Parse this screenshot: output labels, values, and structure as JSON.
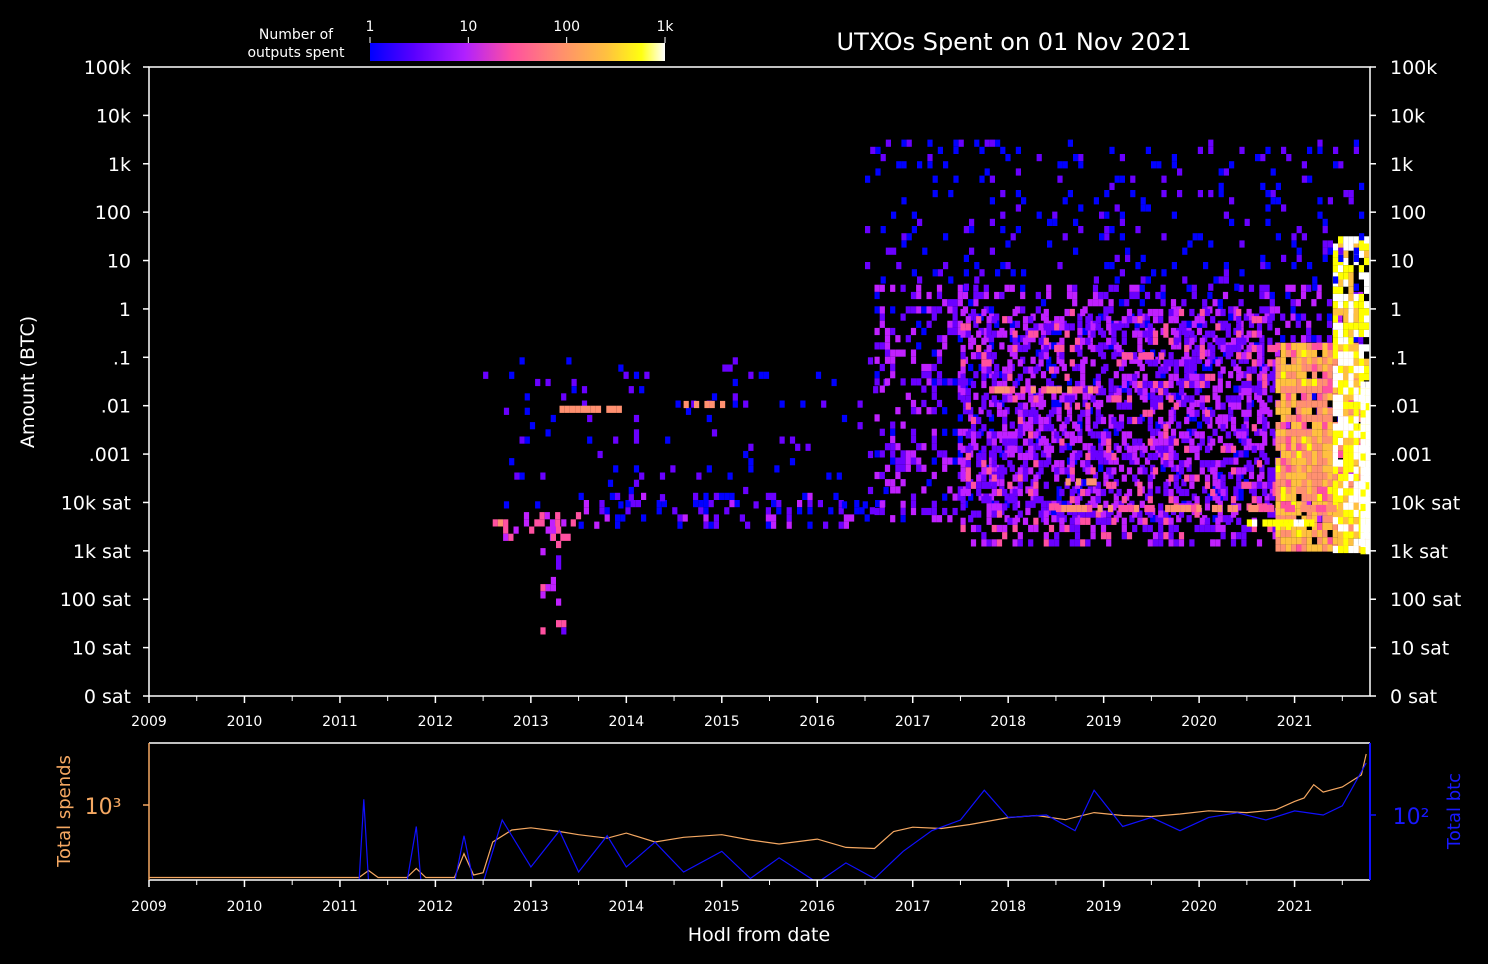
{
  "chart_data": [
    {
      "type": "heatmap",
      "title": "UTXOs Spent on 01 Nov 2021",
      "xlabel": "",
      "ylabel": "Amount (BTC)",
      "x_ticks": [
        "2009",
        "2010",
        "2011",
        "2012",
        "2013",
        "2014",
        "2015",
        "2016",
        "2017",
        "2018",
        "2019",
        "2020",
        "2021"
      ],
      "xlim": [
        2009.0,
        2021.79
      ],
      "y_ticks_left": [
        "100k",
        "10k",
        "1k",
        "100",
        "10",
        "1",
        ".1",
        ".01",
        ".001",
        "10k sat",
        "1k sat",
        "100 sat",
        "10 sat",
        "0 sat"
      ],
      "y_ticks_right": [
        "100k",
        "10k",
        "1k",
        "100",
        "10",
        "1",
        ".1",
        ".01",
        ".001",
        "10k sat",
        "1k sat",
        "100 sat",
        "10 sat",
        "0 sat"
      ],
      "y_scale": "log",
      "colorbar": {
        "label_line1": "Number of",
        "label_line2": "outputs spent",
        "ticks": [
          "1",
          "10",
          "100",
          "1k"
        ],
        "colors": [
          "#0000ff",
          "#6a00ff",
          "#c020ff",
          "#ff50a0",
          "#ff9070",
          "#ffc040",
          "#ffff00",
          "#ffffff"
        ]
      },
      "grid": false,
      "clusters": [
        {
          "x0": 2012.6,
          "x1": 2013.5,
          "y0": -0.7,
          "y1": -0.2,
          "density": 0.35,
          "intensity": 0.4
        },
        {
          "x0": 2013.1,
          "x1": 2013.4,
          "y0": -2.7,
          "y1": -0.2,
          "density": 0.25,
          "intensity": 0.35
        },
        {
          "x0": 2013.5,
          "x1": 2016.7,
          "y0": -0.4,
          "y1": 0.2,
          "density": 0.3,
          "intensity": 0.15
        },
        {
          "x0": 2012.5,
          "x1": 2016.7,
          "y0": 0.0,
          "y1": 3.0,
          "density": 0.05,
          "intensity": 0.1
        },
        {
          "x0": 2016.6,
          "x1": 2021.7,
          "y0": -0.3,
          "y1": 4.5,
          "density": 0.35,
          "intensity": 0.22
        },
        {
          "x0": 2017.5,
          "x1": 2020.8,
          "y0": -0.9,
          "y1": 4.0,
          "density": 0.45,
          "intensity": 0.28
        },
        {
          "x0": 2020.8,
          "x1": 2021.7,
          "y0": -0.95,
          "y1": 3.3,
          "density": 0.9,
          "intensity": 0.62
        },
        {
          "x0": 2021.4,
          "x1": 2021.75,
          "y0": -1.0,
          "y1": 5.5,
          "density": 0.85,
          "intensity": 0.85
        },
        {
          "x0": 2016.5,
          "x1": 2021.7,
          "y0": 4.5,
          "y1": 7.5,
          "density": 0.12,
          "intensity": 0.1
        }
      ],
      "features": [
        {
          "x0": 2013.3,
          "x1": 2014.0,
          "y": 2.0,
          "intensity": 0.6
        },
        {
          "x0": 2014.6,
          "x1": 2015.0,
          "y": 2.1,
          "intensity": 0.6
        },
        {
          "x0": 2017.8,
          "x1": 2018.9,
          "y": 2.4,
          "intensity": 0.55
        },
        {
          "x0": 2019.2,
          "x1": 2019.7,
          "y": 3.1,
          "intensity": 0.5
        },
        {
          "x0": 2018.5,
          "x1": 2021.4,
          "y": -0.05,
          "intensity": 0.55
        },
        {
          "x0": 2020.5,
          "x1": 2021.2,
          "y": -0.35,
          "intensity": 0.9
        },
        {
          "x0": 2021.69,
          "x1": 2021.75,
          "y0": -1.0,
          "y1": 2.5,
          "intensity": 1.0
        },
        {
          "x0": 2018.6,
          "x1": 2018.9,
          "y": 0.5,
          "intensity": 0.6
        }
      ]
    },
    {
      "type": "line",
      "xlabel": "Hodl from date",
      "ylabel_left": "Total spends",
      "ylabel_right": "Total btc",
      "x_ticks": [
        "2009",
        "2010",
        "2011",
        "2012",
        "2013",
        "2014",
        "2015",
        "2016",
        "2017",
        "2018",
        "2019",
        "2020",
        "2021"
      ],
      "left_tick": "10³",
      "right_tick": "10²",
      "series": [
        {
          "name": "Total spends",
          "color": "#f5a862",
          "x": [
            2009.0,
            2011.2,
            2011.3,
            2011.4,
            2011.7,
            2011.8,
            2011.9,
            2012.2,
            2012.3,
            2012.4,
            2012.5,
            2012.6,
            2012.8,
            2013.0,
            2013.3,
            2013.5,
            2013.8,
            2014.0,
            2014.3,
            2014.6,
            2015.0,
            2015.3,
            2015.6,
            2016.0,
            2016.3,
            2016.6,
            2016.8,
            2017.0,
            2017.3,
            2017.6,
            2018.0,
            2018.3,
            2018.6,
            2018.9,
            2019.2,
            2019.5,
            2019.8,
            2020.1,
            2020.5,
            2020.8,
            2021.0,
            2021.1,
            2021.2,
            2021.3,
            2021.5,
            2021.7,
            2021.75
          ],
          "values": [
            150,
            150,
            180,
            150,
            150,
            190,
            150,
            150,
            280,
            160,
            170,
            380,
            520,
            550,
            500,
            460,
            420,
            480,
            380,
            430,
            460,
            400,
            360,
            410,
            330,
            320,
            500,
            560,
            540,
            600,
            720,
            760,
            680,
            820,
            760,
            740,
            790,
            860,
            820,
            880,
            1100,
            1200,
            1700,
            1400,
            1600,
            2200,
            3800
          ]
        },
        {
          "name": "Total btc",
          "color": "#1010ff",
          "x": [
            2009.0,
            2011.2,
            2011.25,
            2011.3,
            2011.7,
            2011.8,
            2011.85,
            2012.2,
            2012.3,
            2012.4,
            2012.5,
            2012.7,
            2013.0,
            2013.3,
            2013.5,
            2013.8,
            2014.0,
            2014.3,
            2014.6,
            2015.0,
            2015.3,
            2015.6,
            2016.0,
            2016.3,
            2016.6,
            2016.9,
            2017.2,
            2017.5,
            2017.75,
            2018.0,
            2018.4,
            2018.7,
            2018.9,
            2019.2,
            2019.5,
            2019.8,
            2020.1,
            2020.4,
            2020.7,
            2021.0,
            2021.3,
            2021.5,
            2021.75
          ],
          "values": [
            5,
            5,
            200,
            5,
            5,
            60,
            5,
            5,
            40,
            5,
            5,
            80,
            10,
            50,
            8,
            40,
            10,
            30,
            8,
            20,
            6,
            15,
            5,
            12,
            6,
            20,
            50,
            80,
            300,
            90,
            100,
            50,
            300,
            60,
            90,
            50,
            90,
            110,
            80,
            120,
            100,
            150,
            1000
          ]
        }
      ]
    }
  ]
}
